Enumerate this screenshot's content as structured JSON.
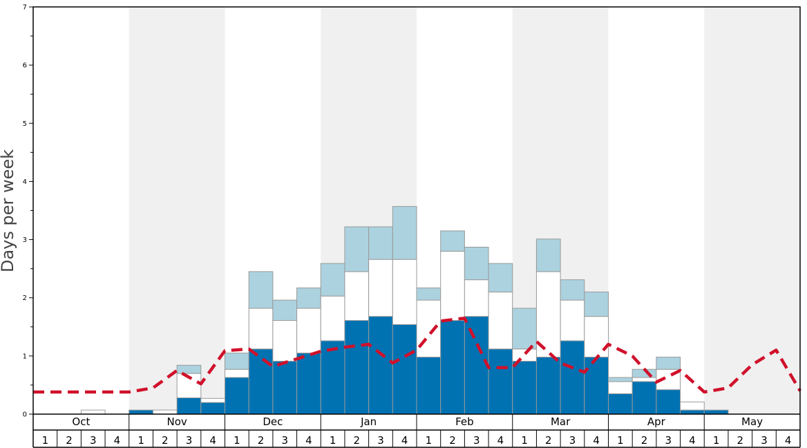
{
  "chart_data": {
    "type": "bar",
    "ylabel": "Days per week",
    "ylim": [
      0,
      7
    ],
    "yticks": [
      0,
      1,
      2,
      3,
      4,
      5,
      6,
      7
    ],
    "months": [
      "Oct",
      "Nov",
      "Dec",
      "Jan",
      "Feb",
      "Mar",
      "Apr",
      "May"
    ],
    "week_labels": [
      "1",
      "2",
      "3",
      "4"
    ],
    "colors": {
      "dark": "#0072b2",
      "white": "#ffffff",
      "light": "#acd2df",
      "dashed": "#d0112b",
      "shade": "#f0f0f0"
    },
    "series": [
      {
        "values": [
          0,
          0,
          0,
          0,
          0.07,
          0,
          0.28,
          0.2,
          0.63,
          1.12,
          0.91,
          1.05,
          1.26,
          1.61,
          1.68,
          1.54,
          0.98,
          1.61,
          1.68,
          1.12,
          0.91,
          0.98,
          1.26,
          0.98,
          0.35,
          0.56,
          0.42,
          0.07,
          0.07,
          0,
          0,
          0
        ]
      },
      {
        "values": [
          0,
          0,
          0.07,
          0,
          0,
          0.07,
          0.42,
          0.07,
          0.14,
          0.7,
          0.7,
          0.77,
          0.77,
          0.84,
          0.98,
          1.12,
          0.98,
          1.19,
          0.63,
          0.98,
          0.21,
          1.47,
          0.7,
          0.7,
          0.21,
          0.07,
          0.35,
          0.14,
          0,
          0,
          0,
          0
        ]
      },
      {
        "values": [
          0,
          0,
          0,
          0,
          0,
          0,
          0.14,
          0,
          0.28,
          0.63,
          0.35,
          0.35,
          0.56,
          0.77,
          0.56,
          0.91,
          0.21,
          0.35,
          0.56,
          0.49,
          0.7,
          0.56,
          0.35,
          0.42,
          0.07,
          0.14,
          0.21,
          0,
          0,
          0,
          0,
          0
        ]
      },
      {
        "values": [
          0.38,
          0.38,
          0.38,
          0.38,
          0.38,
          0.45,
          0.75,
          0.52,
          1.09,
          1.12,
          0.82,
          0.95,
          1.08,
          1.15,
          1.2,
          0.88,
          1.1,
          1.6,
          1.65,
          0.8,
          0.8,
          1.25,
          0.88,
          0.72,
          1.2,
          1.0,
          0.55,
          0.75,
          0.38,
          0.45,
          0.85,
          1.1,
          0.4
        ]
      }
    ]
  }
}
